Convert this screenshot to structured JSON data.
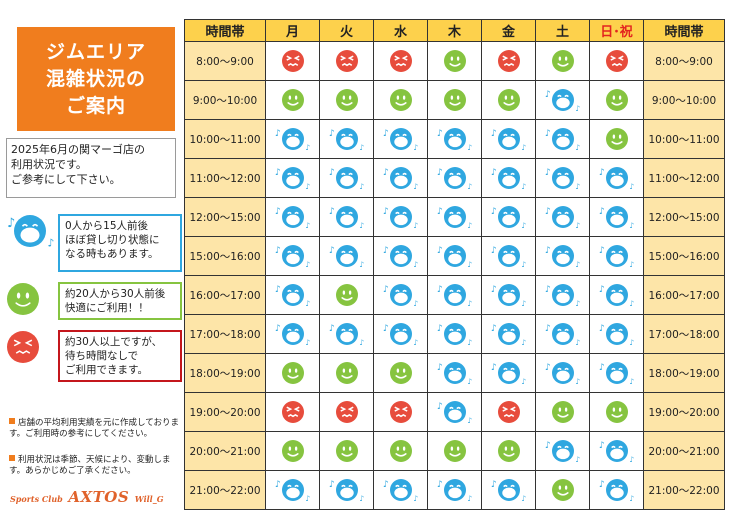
{
  "title": {
    "lines": [
      "ジムエリア",
      "混雑状況の",
      "ご案内"
    ]
  },
  "notice": {
    "lines": [
      "2025年6月の関マーゴ店の",
      "利用状況です。",
      "ご参考にして下さい。"
    ]
  },
  "legend": [
    {
      "level": "low",
      "icon": "blue-singing-face-icon",
      "color": "#2fa7e0",
      "lines": [
        "0人から15人前後",
        "ほぼ貸し切り状態に",
        "なる時もあります。"
      ]
    },
    {
      "level": "mid",
      "icon": "green-smile-face-icon",
      "color": "#86c440",
      "lines": [
        "約20人から30人前後",
        "快適にご利用！！"
      ]
    },
    {
      "level": "high",
      "icon": "red-crowded-face-icon",
      "color": "#c4161c",
      "lines": [
        "約30人以上ですが、",
        "待ち時間なしで",
        "ご利用できます。"
      ]
    }
  ],
  "footnotes": [
    "店舗の平均利用実績を元に作成しております。ご利用時の参考にしてください。",
    "利用状況は季節、天候により、変動します。あらかじめご了承ください。"
  ],
  "brand": {
    "prefix": "Sports Club",
    "name": "AXTOS",
    "suffix": "Will_G"
  },
  "colors": {
    "orange": "#f07d1e",
    "header_yellow": "#fdd14c",
    "time_cell": "#fde5a8",
    "low": "#2fa7e0",
    "mid": "#86c440",
    "high": "#e74c3c"
  },
  "schedule": {
    "time_header": "時間帯",
    "days": [
      "月",
      "火",
      "水",
      "木",
      "金",
      "土",
      "日･祝"
    ],
    "rows": [
      {
        "time": "8:00～9:00",
        "levels": [
          "high",
          "high",
          "high",
          "mid",
          "high",
          "mid",
          "high"
        ]
      },
      {
        "time": "9:00～10:00",
        "levels": [
          "mid",
          "mid",
          "mid",
          "mid",
          "mid",
          "low",
          "mid"
        ]
      },
      {
        "time": "10:00～11:00",
        "levels": [
          "low",
          "low",
          "low",
          "low",
          "low",
          "low",
          "mid"
        ]
      },
      {
        "time": "11:00～12:00",
        "levels": [
          "low",
          "low",
          "low",
          "low",
          "low",
          "low",
          "low"
        ]
      },
      {
        "time": "12:00～15:00",
        "levels": [
          "low",
          "low",
          "low",
          "low",
          "low",
          "low",
          "low"
        ]
      },
      {
        "time": "15:00～16:00",
        "levels": [
          "low",
          "low",
          "low",
          "low",
          "low",
          "low",
          "low"
        ]
      },
      {
        "time": "16:00～17:00",
        "levels": [
          "low",
          "mid",
          "low",
          "low",
          "low",
          "low",
          "low"
        ]
      },
      {
        "time": "17:00～18:00",
        "levels": [
          "low",
          "low",
          "low",
          "low",
          "low",
          "low",
          "low"
        ]
      },
      {
        "time": "18:00～19:00",
        "levels": [
          "mid",
          "mid",
          "mid",
          "low",
          "low",
          "low",
          "low"
        ]
      },
      {
        "time": "19:00～20:00",
        "levels": [
          "high",
          "high",
          "high",
          "low",
          "high",
          "mid",
          "mid"
        ]
      },
      {
        "time": "20:00～21:00",
        "levels": [
          "mid",
          "mid",
          "mid",
          "mid",
          "mid",
          "low",
          "low"
        ]
      },
      {
        "time": "21:00～22:00",
        "levels": [
          "low",
          "low",
          "low",
          "low",
          "low",
          "mid",
          "low"
        ]
      }
    ]
  }
}
